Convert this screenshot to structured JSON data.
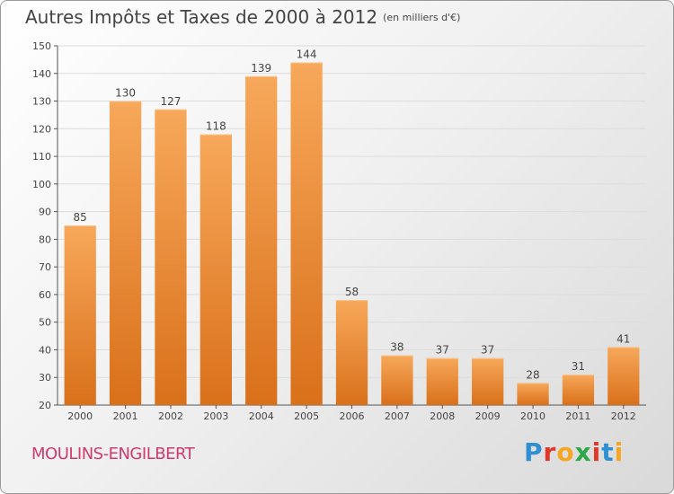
{
  "chart_data": {
    "type": "bar",
    "title": "Autres Impôts et Taxes de 2000 à 2012",
    "subtitle": "(en milliers d'€)",
    "categories": [
      "2000",
      "2001",
      "2002",
      "2003",
      "2004",
      "2005",
      "2006",
      "2007",
      "2008",
      "2009",
      "2010",
      "2011",
      "2012"
    ],
    "values": [
      85,
      130,
      127,
      118,
      139,
      144,
      58,
      38,
      37,
      37,
      28,
      31,
      41
    ],
    "ylim": [
      20,
      150
    ],
    "yticks": [
      20,
      30,
      40,
      50,
      60,
      70,
      80,
      90,
      100,
      110,
      120,
      130,
      140,
      150
    ],
    "grid": true,
    "bar_color": "#f08a30"
  },
  "footer": {
    "place": "MOULINS-ENGILBERT",
    "brand_letters": [
      {
        "ch": "P",
        "color": "#2e8fd4"
      },
      {
        "ch": "r",
        "color": "#e0382b"
      },
      {
        "ch": "o",
        "color": "#f5a623"
      },
      {
        "ch": "x",
        "color": "#2ea84a"
      },
      {
        "ch": "i",
        "color": "#e0382b"
      },
      {
        "ch": "t",
        "color": "#2e8fd4"
      },
      {
        "ch": "i",
        "color": "#f5a623"
      }
    ]
  }
}
